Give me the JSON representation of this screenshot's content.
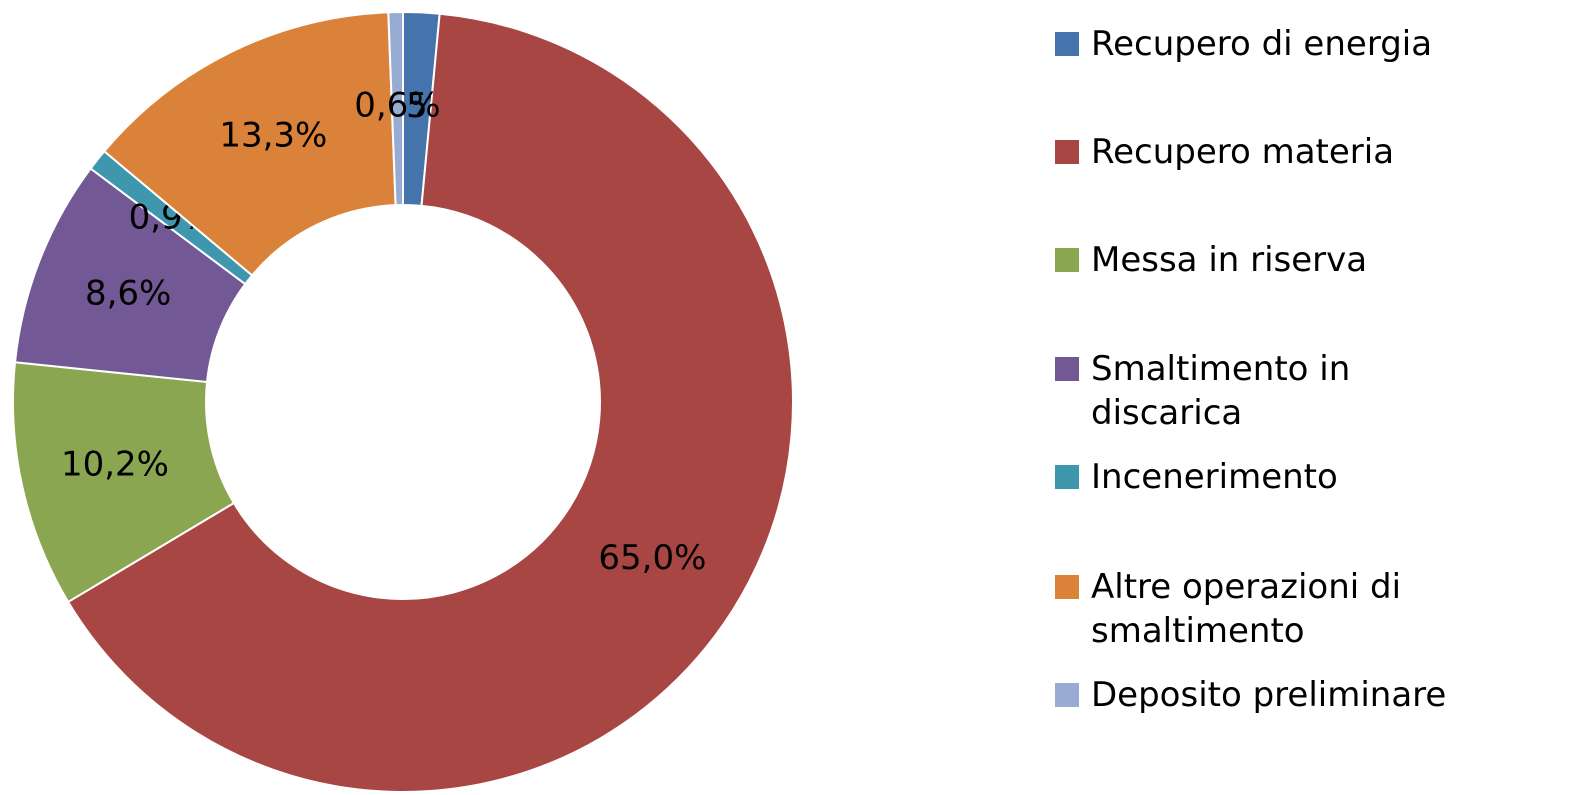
{
  "chart_data": {
    "type": "donut",
    "categories": [
      "Recupero di energia",
      "Recupero materia",
      "Messa in riserva",
      "Smaltimento in discarica",
      "Incenerimento",
      "Altre operazioni di smaltimento",
      "Deposito preliminare"
    ],
    "values": [
      1.5,
      65.0,
      10.2,
      8.6,
      0.9,
      13.3,
      0.6
    ],
    "value_labels": [
      "1,5%",
      "65,0%",
      "10,2%",
      "8,6%",
      "0,9%",
      "13,3%",
      "0,6%"
    ],
    "colors": [
      "#4474ab",
      "#a84644",
      "#8ba650",
      "#725894",
      "#3f97ae",
      "#da8239",
      "#98acd3"
    ],
    "legend": "right"
  }
}
